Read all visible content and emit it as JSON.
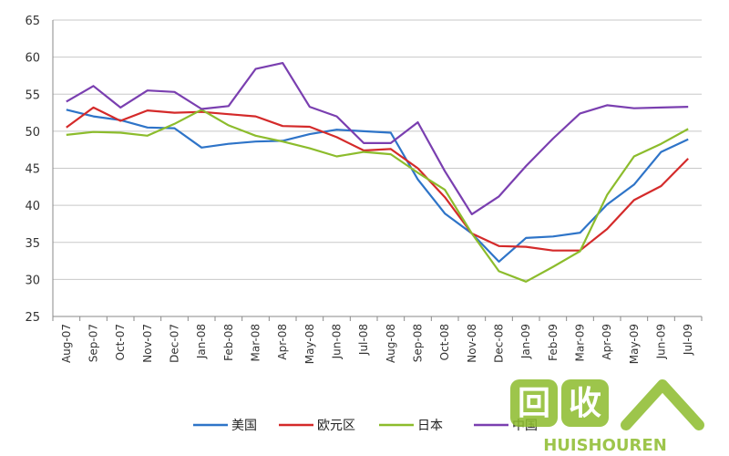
{
  "chart_data": {
    "type": "line",
    "title": "",
    "xlabel": "",
    "ylabel": "",
    "ylim": [
      25,
      65
    ],
    "yticks": [
      25,
      30,
      35,
      40,
      45,
      50,
      55,
      60,
      65
    ],
    "grid": true,
    "legend_position": "bottom",
    "categories": [
      "Aug-07",
      "Sep-07",
      "Oct-07",
      "Nov-07",
      "Dec-07",
      "Jan-08",
      "Feb-08",
      "Mar-08",
      "Apr-08",
      "May-08",
      "Jun-08",
      "Jul-08",
      "Aug-08",
      "Sep-08",
      "Oct-08",
      "Nov-08",
      "Dec-08",
      "Jan-09",
      "Feb-09",
      "Mar-09",
      "Apr-09",
      "May-09",
      "Jun-09",
      "Jul-09"
    ],
    "series": [
      {
        "name": "美国",
        "color": "#2e74c8",
        "values": [
          52.9,
          52.0,
          51.5,
          50.5,
          50.4,
          47.8,
          48.3,
          48.6,
          48.7,
          49.6,
          50.2,
          50.0,
          49.8,
          43.5,
          38.9,
          36.2,
          32.4,
          35.6,
          35.8,
          36.3,
          40.1,
          42.8,
          47.2,
          48.9
        ]
      },
      {
        "name": "欧元区",
        "color": "#d42a2a",
        "values": [
          50.5,
          53.2,
          51.4,
          52.8,
          52.5,
          52.6,
          52.3,
          52.0,
          50.7,
          50.6,
          49.2,
          47.4,
          47.6,
          45.0,
          41.1,
          36.2,
          34.5,
          34.4,
          33.9,
          33.9,
          36.8,
          40.7,
          42.6,
          46.3
        ]
      },
      {
        "name": "日本",
        "color": "#8cbc2c",
        "values": [
          49.5,
          49.9,
          49.8,
          49.4,
          51.0,
          52.9,
          50.8,
          49.4,
          48.6,
          47.7,
          46.6,
          47.2,
          46.9,
          44.4,
          42.1,
          36.2,
          31.1,
          29.7,
          31.7,
          33.8,
          41.4,
          46.6,
          48.3,
          50.3
        ]
      },
      {
        "name": "中国",
        "color": "#7a3fb0",
        "values": [
          54.0,
          56.1,
          53.2,
          55.5,
          55.3,
          53.0,
          53.4,
          58.4,
          59.2,
          53.3,
          52.0,
          48.4,
          48.4,
          51.2,
          44.6,
          38.8,
          41.2,
          45.3,
          49.0,
          52.4,
          53.5,
          53.1,
          53.2,
          53.3
        ]
      }
    ]
  },
  "watermark": {
    "text": "回收",
    "subtext": "HUISHOUREN"
  }
}
